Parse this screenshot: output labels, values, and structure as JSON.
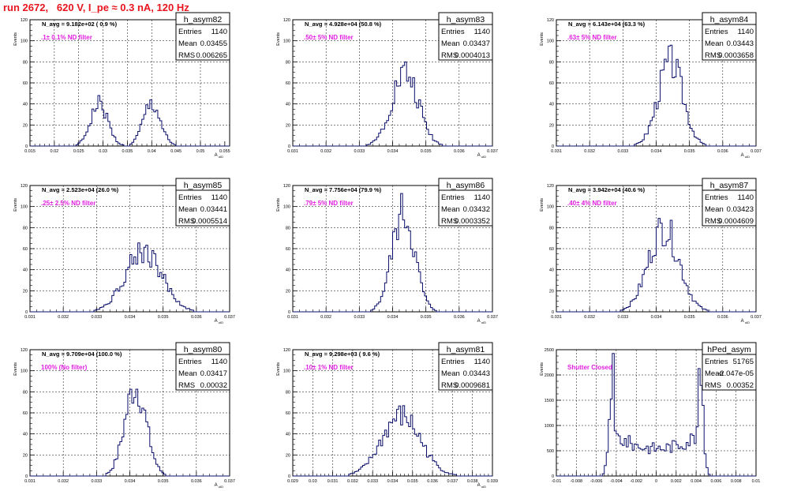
{
  "page": {
    "title": "run 2672,   620 V, I_pe ≈ 0.3 nA, 120 Hz"
  },
  "chart_data": [
    {
      "type": "bar",
      "hist_name": "h_asym82",
      "stats": {
        "entries_label": "Entries",
        "entries": "1140",
        "mean_label": "Mean",
        "mean": "0.03455",
        "rms_label": "RMS",
        "rms": "0.006265"
      },
      "annotation": "N_avg = 9.182e+02 ( 0.9 %)",
      "filter_label": ".1± 0.1% ND filter",
      "ylabel": "Events",
      "xlabel": "A_uID",
      "xlim": [
        0.015,
        0.056
      ],
      "ylim": [
        0,
        120
      ],
      "xticks": [
        "0.015",
        "0.02",
        "0.025",
        "0.03",
        "0.035",
        "0.04",
        "0.045",
        "0.05",
        "0.055"
      ],
      "xtick_values": [
        0.015,
        0.02,
        0.025,
        0.03,
        0.035,
        0.04,
        0.045,
        0.05,
        0.055
      ],
      "yticks": [
        "0",
        "20",
        "40",
        "60",
        "80",
        "100",
        "120"
      ],
      "mu": 0.0345,
      "sigma": 0.0063,
      "peak": 40,
      "bimodal": true,
      "seed": 1
    },
    {
      "type": "bar",
      "hist_name": "h_asym83",
      "stats": {
        "entries_label": "Entries",
        "entries": "1140",
        "mean_label": "Mean",
        "mean": "0.03437",
        "rms_label": "RMS",
        "rms": "0.0004013"
      },
      "annotation": "N_avg = 4.928e+04 (50.8 %)",
      "filter_label": ".50± 5% ND filter",
      "ylabel": "Events",
      "xlabel": "A_uID",
      "xlim": [
        0.031,
        0.037
      ],
      "ylim": [
        0,
        120
      ],
      "xticks": [
        "0.031",
        "0.032",
        "0.033",
        "0.034",
        "0.035",
        "0.036",
        "0.037"
      ],
      "xtick_values": [
        0.031,
        0.032,
        0.033,
        0.034,
        0.035,
        0.036,
        0.037
      ],
      "yticks": [
        "0",
        "20",
        "40",
        "60",
        "80",
        "100",
        "120"
      ],
      "mu": 0.03437,
      "sigma": 0.0004,
      "peak": 70,
      "seed": 2
    },
    {
      "type": "bar",
      "hist_name": "h_asym84",
      "stats": {
        "entries_label": "Entries",
        "entries": "1140",
        "mean_label": "Mean",
        "mean": "0.03443",
        "rms_label": "RMS",
        "rms": "0.0003658"
      },
      "annotation": "N_avg = 6.143e+04 (63.3 %)",
      "filter_label": ".63± 5% ND filter",
      "ylabel": "Events",
      "xlabel": "A_uID",
      "xlim": [
        0.031,
        0.037
      ],
      "ylim": [
        0,
        120
      ],
      "xticks": [
        "0.031",
        "0.032",
        "0.033",
        "0.034",
        "0.035",
        "0.036",
        "0.037"
      ],
      "xtick_values": [
        0.031,
        0.032,
        0.033,
        0.034,
        0.035,
        0.036,
        0.037
      ],
      "yticks": [
        "0",
        "20",
        "40",
        "60",
        "80",
        "100",
        "120"
      ],
      "mu": 0.03443,
      "sigma": 0.00037,
      "peak": 80,
      "seed": 3
    },
    {
      "type": "bar",
      "hist_name": "h_asym85",
      "stats": {
        "entries_label": "Entries",
        "entries": "1140",
        "mean_label": "Mean",
        "mean": "0.03441",
        "rms_label": "RMS",
        "rms": "0.0005514"
      },
      "annotation": "N_avg = 2.523e+04 (26.0 %)",
      "filter_label": ".25± 2.5% ND filter",
      "ylabel": "Events",
      "xlabel": "A_uID",
      "xlim": [
        0.031,
        0.037
      ],
      "ylim": [
        0,
        120
      ],
      "xticks": [
        "0.031",
        "0.032",
        "0.033",
        "0.034",
        "0.035",
        "0.036",
        "0.037"
      ],
      "xtick_values": [
        0.031,
        0.032,
        0.033,
        0.034,
        0.035,
        0.036,
        0.037
      ],
      "yticks": [
        "0",
        "20",
        "40",
        "60",
        "80",
        "100",
        "120"
      ],
      "mu": 0.03441,
      "sigma": 0.00055,
      "peak": 58,
      "seed": 4
    },
    {
      "type": "bar",
      "hist_name": "h_asym86",
      "stats": {
        "entries_label": "Entries",
        "entries": "1140",
        "mean_label": "Mean",
        "mean": "0.03432",
        "rms_label": "RMS",
        "rms": "0.0003352"
      },
      "annotation": "N_avg = 7.756e+04 (79.9 %)",
      "filter_label": ".79± 5% ND filter",
      "ylabel": "Events",
      "xlabel": "A_uID",
      "xlim": [
        0.031,
        0.037
      ],
      "ylim": [
        0,
        120
      ],
      "xticks": [
        "0.031",
        "0.032",
        "0.033",
        "0.034",
        "0.035",
        "0.036",
        "0.037"
      ],
      "xtick_values": [
        0.031,
        0.032,
        0.033,
        0.034,
        0.035,
        0.036,
        0.037
      ],
      "yticks": [
        "0",
        "20",
        "40",
        "60",
        "80",
        "100",
        "120"
      ],
      "mu": 0.03432,
      "sigma": 0.00034,
      "peak": 95,
      "seed": 5
    },
    {
      "type": "bar",
      "hist_name": "h_asym87",
      "stats": {
        "entries_label": "Entries",
        "entries": "1140",
        "mean_label": "Mean",
        "mean": "0.03423",
        "rms_label": "RMS",
        "rms": "0.0004609"
      },
      "annotation": "N_avg = 3.942e+04 (40.6 %)",
      "filter_label": ".40± 4% ND filter",
      "ylabel": "Events",
      "xlabel": "A_uID",
      "xlim": [
        0.031,
        0.037
      ],
      "ylim": [
        0,
        120
      ],
      "xticks": [
        "0.031",
        "0.032",
        "0.033",
        "0.034",
        "0.035",
        "0.036",
        "0.037"
      ],
      "xtick_values": [
        0.031,
        0.032,
        0.033,
        0.034,
        0.035,
        0.036,
        0.037
      ],
      "yticks": [
        "0",
        "20",
        "40",
        "60",
        "80",
        "100",
        "120"
      ],
      "mu": 0.03423,
      "sigma": 0.00046,
      "peak": 80,
      "seed": 6
    },
    {
      "type": "bar",
      "hist_name": "h_asym80",
      "stats": {
        "entries_label": "Entries",
        "entries": "1140",
        "mean_label": "Mean",
        "mean": "0.03417",
        "rms_label": "RMS",
        "rms": "0.00032"
      },
      "annotation": "N_avg = 9.709e+04 (100.0 %)",
      "filter_label": "100% (No filter)",
      "ylabel": "Events",
      "xlabel": "A_uID",
      "xlim": [
        0.031,
        0.037
      ],
      "ylim": [
        0,
        120
      ],
      "xticks": [
        "0.031",
        "0.032",
        "0.033",
        "0.034",
        "0.035",
        "0.036",
        "0.037"
      ],
      "xtick_values": [
        0.031,
        0.032,
        0.033,
        0.034,
        0.035,
        0.036,
        0.037
      ],
      "yticks": [
        "0",
        "20",
        "40",
        "60",
        "80",
        "100",
        "120"
      ],
      "mu": 0.03417,
      "sigma": 0.00032,
      "peak": 85,
      "seed": 7
    },
    {
      "type": "bar",
      "hist_name": "h_asym81",
      "stats": {
        "entries_label": "Entries",
        "entries": "1140",
        "mean_label": "Mean",
        "mean": "0.03443",
        "rms_label": "RMS",
        "rms": "0.0009681"
      },
      "annotation": "N_avg = 9.298e+03 ( 9.6 %)",
      "filter_label": ".10± 1% ND filter",
      "ylabel": "Events",
      "xlabel": "A_uID",
      "xlim": [
        0.029,
        0.039
      ],
      "ylim": [
        0,
        120
      ],
      "xticks": [
        "0.029",
        "0.03",
        "0.031",
        "0.032",
        "0.033",
        "0.034",
        "0.035",
        "0.036",
        "0.037",
        "0.038",
        "0.039"
      ],
      "xtick_values": [
        0.029,
        0.03,
        0.031,
        0.032,
        0.033,
        0.034,
        0.035,
        0.036,
        0.037,
        0.038,
        0.039
      ],
      "yticks": [
        "0",
        "20",
        "40",
        "60",
        "80",
        "100",
        "120"
      ],
      "mu": 0.03443,
      "sigma": 0.00097,
      "peak": 57,
      "seed": 8
    },
    {
      "type": "bar",
      "hist_name": "hPed_asym",
      "stats": {
        "entries_label": "Entries",
        "entries": "51765",
        "mean_label": "Mean",
        "mean": "-2.047e-05",
        "rms_label": "RMS",
        "rms": "0.00352"
      },
      "annotation": "",
      "filter_label": "Shutter Closed",
      "ylabel": "Events",
      "xlabel": "",
      "xlim": [
        -0.01,
        0.01
      ],
      "ylim": [
        0,
        2500
      ],
      "xticks": [
        "-0.01",
        "-0.008",
        "-0.006",
        "-0.004",
        "-0.002",
        "0",
        "0.002",
        "0.004",
        "0.006",
        "0.008",
        "0.01"
      ],
      "xtick_values": [
        -0.01,
        -0.008,
        -0.006,
        -0.004,
        -0.002,
        0,
        0.002,
        0.004,
        0.006,
        0.008,
        0.01
      ],
      "yticks": [
        "0",
        "500",
        "1000",
        "1500",
        "2000",
        "2500"
      ],
      "pedestal": true,
      "seed": 9
    }
  ]
}
